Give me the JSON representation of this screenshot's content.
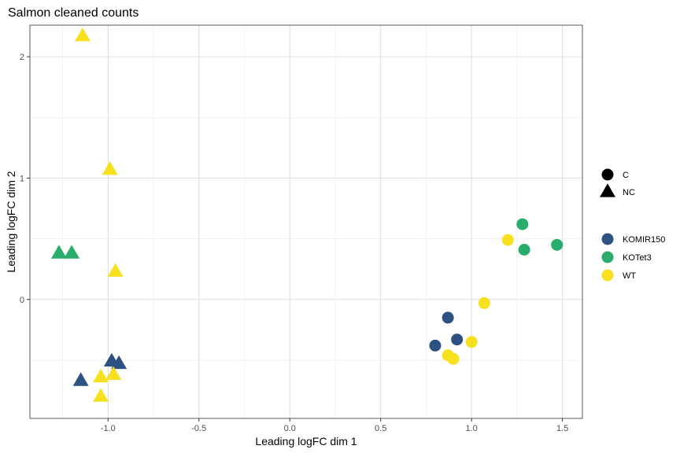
{
  "chart_data": {
    "type": "scatter",
    "title": "Salmon cleaned counts",
    "xlabel": "Leading logFC dim 1",
    "ylabel": "Leading logFC dim 2",
    "xlim": [
      -1.43,
      1.61
    ],
    "ylim": [
      -0.98,
      2.26
    ],
    "x_ticks": [
      -1.0,
      -0.5,
      0.0,
      0.5,
      1.0,
      1.5
    ],
    "x_tick_labels": [
      "-1.0",
      "-0.5",
      "0.0",
      "0.5",
      "1.0",
      "1.5"
    ],
    "y_ticks": [
      0,
      1,
      2
    ],
    "y_tick_labels": [
      "0",
      "1",
      "2"
    ],
    "grid": true,
    "legend_position": "right",
    "shape_legend": [
      {
        "label": "C",
        "shape": "circle"
      },
      {
        "label": "NC",
        "shape": "triangle"
      }
    ],
    "color_legend": [
      {
        "label": "KOMIR150",
        "color": "#2d5281"
      },
      {
        "label": "KOTet3",
        "color": "#29ad6c"
      },
      {
        "label": "WT",
        "color": "#f7e01d"
      }
    ],
    "points": [
      {
        "x": -1.14,
        "y": 2.17,
        "group": "WT",
        "shape": "NC"
      },
      {
        "x": -0.99,
        "y": 1.07,
        "group": "WT",
        "shape": "NC"
      },
      {
        "x": -0.96,
        "y": 0.23,
        "group": "WT",
        "shape": "NC"
      },
      {
        "x": -1.27,
        "y": 0.38,
        "group": "KOTet3",
        "shape": "NC"
      },
      {
        "x": -1.2,
        "y": 0.38,
        "group": "KOTet3",
        "shape": "NC"
      },
      {
        "x": -0.98,
        "y": -0.51,
        "group": "KOMIR150",
        "shape": "NC"
      },
      {
        "x": -0.94,
        "y": -0.53,
        "group": "KOMIR150",
        "shape": "NC"
      },
      {
        "x": -1.15,
        "y": -0.67,
        "group": "KOMIR150",
        "shape": "NC"
      },
      {
        "x": -1.04,
        "y": -0.64,
        "group": "WT",
        "shape": "NC"
      },
      {
        "x": -0.97,
        "y": -0.62,
        "group": "WT",
        "shape": "NC"
      },
      {
        "x": -1.04,
        "y": -0.8,
        "group": "WT",
        "shape": "NC"
      },
      {
        "x": 1.28,
        "y": 0.62,
        "group": "KOTet3",
        "shape": "C"
      },
      {
        "x": 1.29,
        "y": 0.41,
        "group": "KOTet3",
        "shape": "C"
      },
      {
        "x": 1.47,
        "y": 0.45,
        "group": "KOTet3",
        "shape": "C"
      },
      {
        "x": 1.2,
        "y": 0.49,
        "group": "WT",
        "shape": "C"
      },
      {
        "x": 1.07,
        "y": -0.03,
        "group": "WT",
        "shape": "C"
      },
      {
        "x": 1.0,
        "y": -0.35,
        "group": "WT",
        "shape": "C"
      },
      {
        "x": 0.87,
        "y": -0.46,
        "group": "WT",
        "shape": "C"
      },
      {
        "x": 0.9,
        "y": -0.49,
        "group": "WT",
        "shape": "C"
      },
      {
        "x": 0.87,
        "y": -0.15,
        "group": "KOMIR150",
        "shape": "C"
      },
      {
        "x": 0.92,
        "y": -0.33,
        "group": "KOMIR150",
        "shape": "C"
      },
      {
        "x": 0.8,
        "y": -0.38,
        "group": "KOMIR150",
        "shape": "C"
      }
    ]
  }
}
